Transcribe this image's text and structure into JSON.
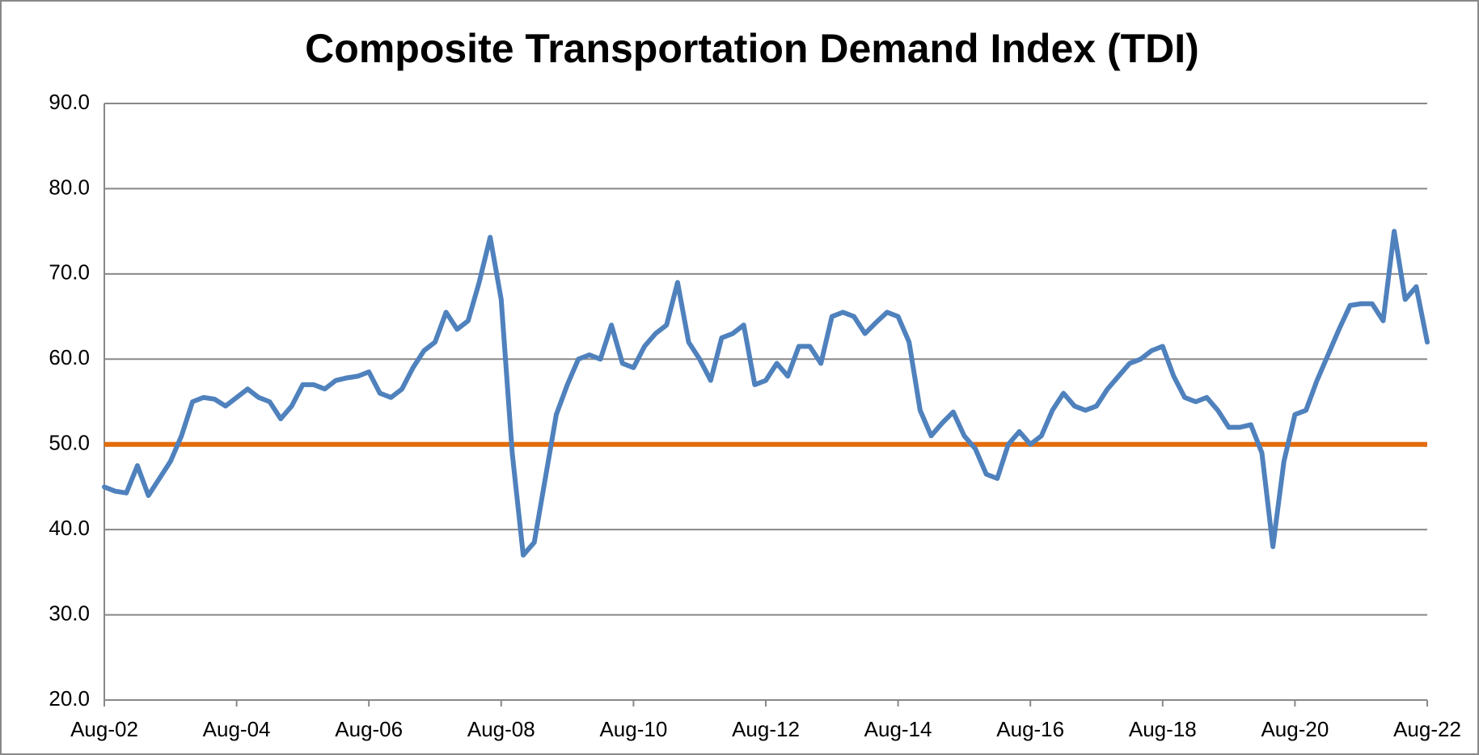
{
  "chart_data": {
    "type": "line",
    "title": "Composite Transportation Demand Index (TDI)",
    "categories": [
      "Aug-02",
      null,
      null,
      null,
      null,
      null,
      null,
      null,
      null,
      null,
      null,
      null,
      "Aug-04",
      null,
      null,
      null,
      null,
      null,
      null,
      null,
      null,
      null,
      null,
      null,
      "Aug-06",
      null,
      null,
      null,
      null,
      null,
      null,
      null,
      null,
      null,
      null,
      null,
      "Aug-08",
      null,
      null,
      null,
      null,
      null,
      null,
      null,
      null,
      null,
      null,
      null,
      "Aug-10",
      null,
      null,
      null,
      null,
      null,
      null,
      null,
      null,
      null,
      null,
      null,
      "Aug-12",
      null,
      null,
      null,
      null,
      null,
      null,
      null,
      null,
      null,
      null,
      null,
      "Aug-14",
      null,
      null,
      null,
      null,
      null,
      null,
      null,
      null,
      null,
      null,
      null,
      "Aug-16",
      null,
      null,
      null,
      null,
      null,
      null,
      null,
      null,
      null,
      null,
      null,
      "Aug-18",
      null,
      null,
      null,
      null,
      null,
      null,
      null,
      null,
      null,
      null,
      null,
      "Aug-20",
      null,
      null,
      null,
      null,
      null,
      null,
      null,
      null,
      null,
      null,
      null,
      "Aug-22"
    ],
    "series": [
      {
        "name": "TDI",
        "color": "#4f81bd",
        "values": [
          45,
          44.5,
          44.3,
          47.5,
          44,
          46,
          48,
          51,
          55,
          55.5,
          55.3,
          54.5,
          55.5,
          56.5,
          55.5,
          55,
          53,
          54.5,
          57,
          57,
          56.5,
          57.5,
          57.8,
          58,
          58.5,
          56,
          55.5,
          56.5,
          59,
          61,
          62,
          65.5,
          63.5,
          64.5,
          69,
          74.3,
          67,
          49,
          37,
          38.5,
          46,
          53.5,
          57,
          60,
          60.5,
          60,
          64,
          59.5,
          59,
          61.5,
          63,
          64,
          69,
          62,
          60,
          57.5,
          62.5,
          63,
          64,
          57,
          57.5,
          59.5,
          58,
          61.5,
          61.5,
          59.5,
          65,
          65.5,
          65,
          63,
          64.3,
          65.5,
          65,
          62,
          54,
          51,
          52.5,
          53.8,
          51,
          49.5,
          46.5,
          46,
          50,
          51.5,
          50,
          51,
          54,
          56,
          54.5,
          54,
          54.5,
          56.5,
          58,
          59.5,
          60,
          61,
          61.5,
          58,
          55.5,
          55,
          55.5,
          54,
          52,
          52,
          52.3,
          49,
          38,
          48,
          53.5,
          54,
          57.5,
          60.5,
          63.5,
          66.3,
          66.5,
          66.5,
          64.5,
          75,
          67,
          68.5,
          62
        ]
      }
    ],
    "reference_line": {
      "value": 50,
      "color": "#e46c0a"
    },
    "ylim": [
      20,
      90
    ],
    "yticks": [
      {
        "value": 20,
        "label": "20.0"
      },
      {
        "value": 30,
        "label": "30.0"
      },
      {
        "value": 40,
        "label": "40.0"
      },
      {
        "value": 50,
        "label": "50.0"
      },
      {
        "value": 60,
        "label": "60.0"
      },
      {
        "value": 70,
        "label": "70.0"
      },
      {
        "value": 80,
        "label": "80.0"
      },
      {
        "value": 90,
        "label": "90.0"
      }
    ],
    "grid": true
  }
}
